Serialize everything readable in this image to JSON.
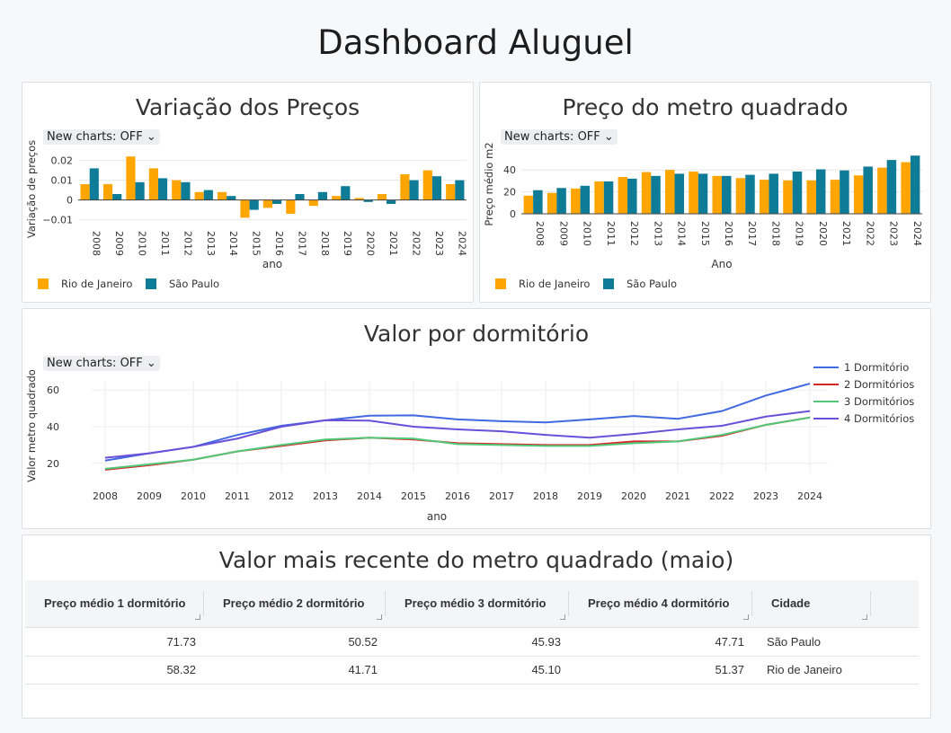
{
  "page": {
    "title": "Dashboard Aluguel"
  },
  "colors": {
    "rio": "#FFA500",
    "sp": "#0E7C96",
    "d1": "#4169E1",
    "d2": "#D62728",
    "d3": "#50C878",
    "d4": "#6A4FD8"
  },
  "toggle_label": "New charts: OFF",
  "chart_data": [
    {
      "id": "variacao",
      "type": "bar",
      "title": "Variação dos Preços",
      "xlabel": "ano",
      "ylabel": "Variação de preços",
      "categories": [
        "2008",
        "2009",
        "2010",
        "2011",
        "2012",
        "2013",
        "2014",
        "2015",
        "2016",
        "2017",
        "2018",
        "2019",
        "2020",
        "2021",
        "2022",
        "2023",
        "2024"
      ],
      "yticks": [
        -0.01,
        0,
        0.01,
        0.02
      ],
      "ytick_labels": [
        "−0.01",
        "0",
        "0.01",
        "0.02"
      ],
      "ylim": [
        -0.012,
        0.023
      ],
      "series": [
        {
          "name": "Rio de Janeiro",
          "values": [
            0.008,
            0.008,
            0.022,
            0.016,
            0.01,
            0.004,
            0.004,
            -0.009,
            -0.004,
            -0.007,
            -0.003,
            0.002,
            0.001,
            0.003,
            0.013,
            0.015,
            0.008
          ]
        },
        {
          "name": "São Paulo",
          "values": [
            0.016,
            0.003,
            0.009,
            0.011,
            0.009,
            0.005,
            0.002,
            -0.005,
            -0.002,
            0.003,
            0.004,
            0.007,
            -0.001,
            -0.002,
            0.01,
            0.012,
            0.01
          ]
        }
      ]
    },
    {
      "id": "m2",
      "type": "bar",
      "title": "Preço do metro quadrado",
      "xlabel": "Ano",
      "ylabel": "Preço médio m2",
      "categories": [
        "2008",
        "2009",
        "2010",
        "2011",
        "2012",
        "2013",
        "2014",
        "2015",
        "2016",
        "2017",
        "2018",
        "2019",
        "2020",
        "2021",
        "2022",
        "2023",
        "2024"
      ],
      "yticks": [
        0,
        20,
        40
      ],
      "ytick_labels": [
        "0",
        "20",
        "40"
      ],
      "ylim": [
        0,
        54
      ],
      "series": [
        {
          "name": "Rio de Janeiro",
          "values": [
            16.5,
            19,
            23,
            29.5,
            33.5,
            38,
            40,
            38.5,
            34.5,
            32.5,
            31,
            30.5,
            30.5,
            31,
            35,
            42,
            47
          ]
        },
        {
          "name": "São Paulo",
          "values": [
            21.5,
            23.5,
            25.5,
            29.5,
            32,
            34.5,
            36.5,
            36.5,
            34.5,
            35.5,
            36.5,
            38.5,
            40.5,
            39.5,
            43,
            49,
            53
          ]
        }
      ]
    },
    {
      "id": "dorm",
      "type": "line",
      "title": "Valor por dormitório",
      "xlabel": "ano",
      "ylabel": "Valor metro quadrado",
      "x": [
        "2008",
        "2009",
        "2010",
        "2011",
        "2012",
        "2013",
        "2014",
        "2015",
        "2016",
        "2017",
        "2018",
        "2019",
        "2020",
        "2021",
        "2022",
        "2023",
        "2024"
      ],
      "yticks": [
        20,
        40,
        60
      ],
      "ytick_labels": [
        "20",
        "40",
        "60"
      ],
      "ylim": [
        15,
        65
      ],
      "series": [
        {
          "name": "1 Dormitório",
          "values": [
            21.5,
            25.5,
            29,
            35.5,
            40.5,
            43.5,
            46,
            46.2,
            44,
            43,
            42.3,
            44,
            45.8,
            44.3,
            48.5,
            57,
            63.5
          ]
        },
        {
          "name": "2 Dormitórios",
          "values": [
            16.5,
            19,
            22,
            26.5,
            29.5,
            32.5,
            34,
            33,
            31,
            30.5,
            30,
            30,
            32,
            32,
            35,
            41,
            45
          ]
        },
        {
          "name": "3 Dormitórios",
          "values": [
            17,
            19.5,
            22,
            26.5,
            30,
            33,
            34,
            33.5,
            30.5,
            30,
            29.5,
            29.5,
            31,
            32,
            35.5,
            41,
            45
          ]
        },
        {
          "name": "4 Dormitórios",
          "values": [
            23,
            25.5,
            29,
            33.5,
            40,
            43.5,
            43.3,
            40,
            38.5,
            37.5,
            35.5,
            34,
            36,
            38.5,
            40.5,
            45.5,
            48.5
          ]
        }
      ]
    }
  ],
  "table": {
    "title": "Valor mais recente do metro quadrado (maio)",
    "columns": [
      "Preço médio 1 dormitório",
      "Preço médio 2 dormitório",
      "Preço médio 3 dormitório",
      "Preço médio 4 dormitório",
      "Cidade"
    ],
    "rows": [
      [
        "71.73",
        "50.52",
        "45.93",
        "47.71",
        "São Paulo"
      ],
      [
        "58.32",
        "41.71",
        "45.10",
        "51.37",
        "Rio de Janeiro"
      ]
    ]
  }
}
